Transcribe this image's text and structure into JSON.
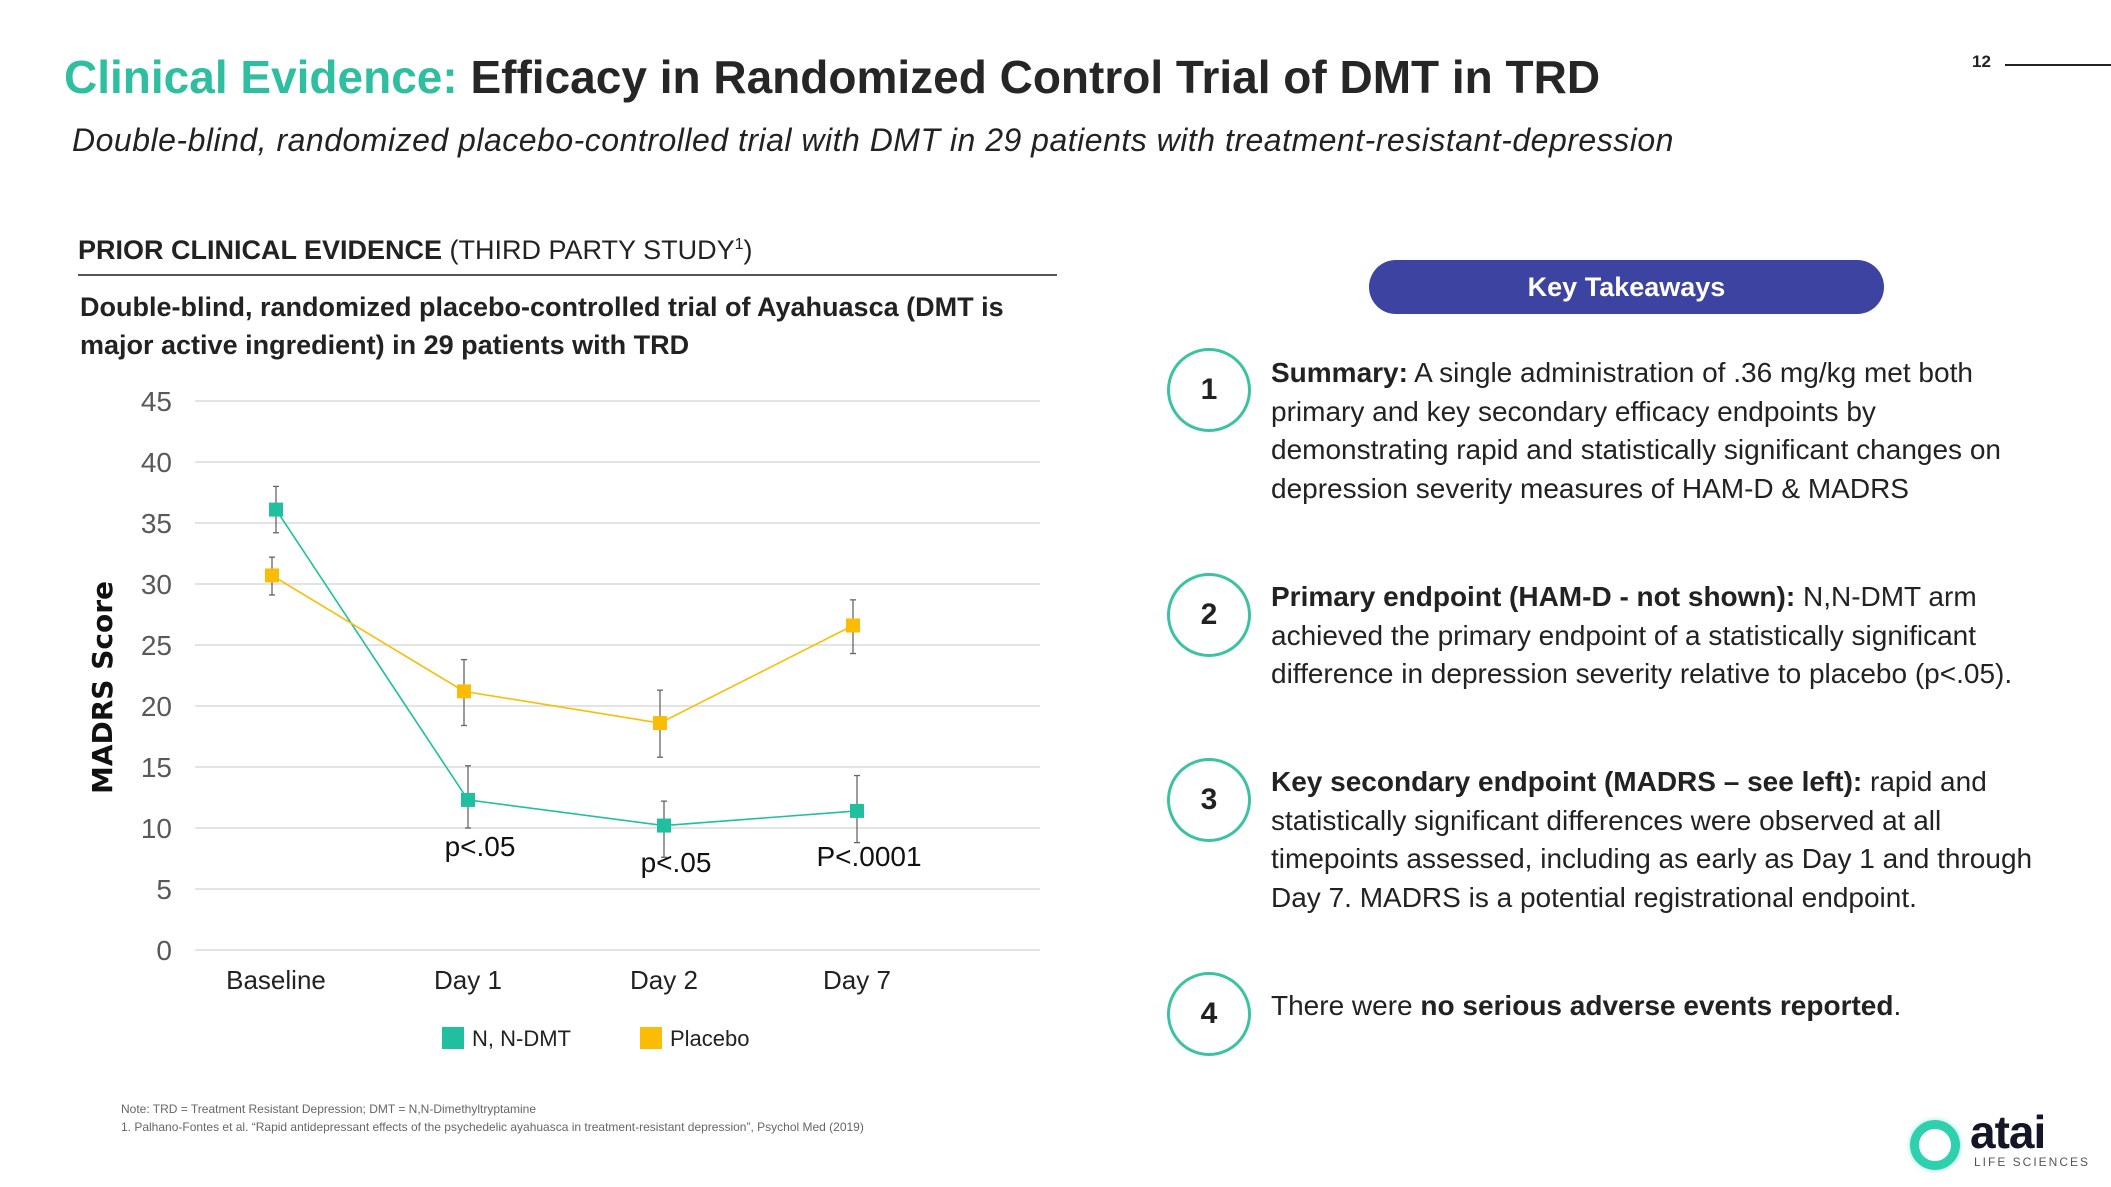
{
  "header": {
    "title_accent": "Clinical Evidence:",
    "title_main": "Efficacy in Randomized Control Trial of DMT in TRD",
    "subtitle": "Double-blind, randomized placebo-controlled trial with DMT in 29 patients with treatment-resistant-depression",
    "page_number": "12"
  },
  "left": {
    "section_bold": "PRIOR CLINICAL EVIDENCE",
    "section_rest": " (THIRD PARTY STUDY",
    "section_sup": "1",
    "section_close": ")",
    "description": "Double-blind, randomized placebo-controlled trial of Ayahuasca (DMT is major active ingredient) in 29 patients with TRD"
  },
  "chart_data": {
    "type": "line",
    "ylabel": "MADRS Score",
    "ylim": [
      0,
      45
    ],
    "yticks": [
      "0",
      "5",
      "10",
      "15",
      "20",
      "25",
      "30",
      "35",
      "40",
      "45"
    ],
    "categories": [
      "Baseline",
      "Day 1",
      "Day 2",
      "Day 7"
    ],
    "grid": true,
    "legend_position": "bottom",
    "series": [
      {
        "name": "N, N-DMT",
        "color": "#1fbf9f",
        "values": [
          36.1,
          12.3,
          10.2,
          11.4
        ],
        "err_low": [
          34.2,
          10.0,
          7.6,
          8.8
        ],
        "err_high": [
          38.0,
          15.1,
          12.2,
          14.3
        ]
      },
      {
        "name": "Placebo",
        "color": "#fbbc05",
        "values": [
          30.7,
          21.2,
          18.6,
          26.6
        ],
        "err_low": [
          29.1,
          18.4,
          15.8,
          24.3
        ],
        "err_high": [
          32.2,
          23.8,
          21.3,
          28.7
        ]
      }
    ],
    "annotations": [
      {
        "category": "Day 1",
        "text": "p<.05",
        "y": 7.7
      },
      {
        "category": "Day 2",
        "text": "p<.05",
        "y": 6.4
      },
      {
        "category": "Day 7",
        "text": "P<.0001",
        "y": 6.9
      }
    ]
  },
  "footnotes": {
    "note": "Note: TRD = Treatment Resistant Depression;  DMT = N,N-Dimethyltryptamine",
    "ref": "1. Palhano-Fontes  et al. “Rapid antidepressant effects of the psychedelic ayahuasca in treatment-resistant depression”,  Psychol Med (2019)"
  },
  "takeaways": {
    "title": "Key Takeaways",
    "items": [
      {
        "num": "1",
        "bold": "Summary:",
        "text": " A single administration of .36 mg/kg met both primary and key secondary efficacy endpoints by demonstrating rapid and statistically significant changes on depression severity measures of HAM-D & MADRS"
      },
      {
        "num": "2",
        "bold": "Primary endpoint (HAM-D - not shown):",
        "text": " N,N-DMT arm achieved the primary endpoint of a statistically significant difference in depression severity relative to placebo (p<.05)."
      },
      {
        "num": "3",
        "bold": "Key secondary endpoint (MADRS – see left):",
        "text": " rapid and statistically significant differences were observed at all timepoints assessed, including as early as Day 1 and through Day 7. MADRS is a potential registrational endpoint."
      },
      {
        "num": "4",
        "pre": "There were ",
        "bold": "no serious adverse events reported",
        "text": "."
      }
    ]
  },
  "logo": {
    "word": "atai",
    "sub": "LIFE SCIENCES"
  }
}
